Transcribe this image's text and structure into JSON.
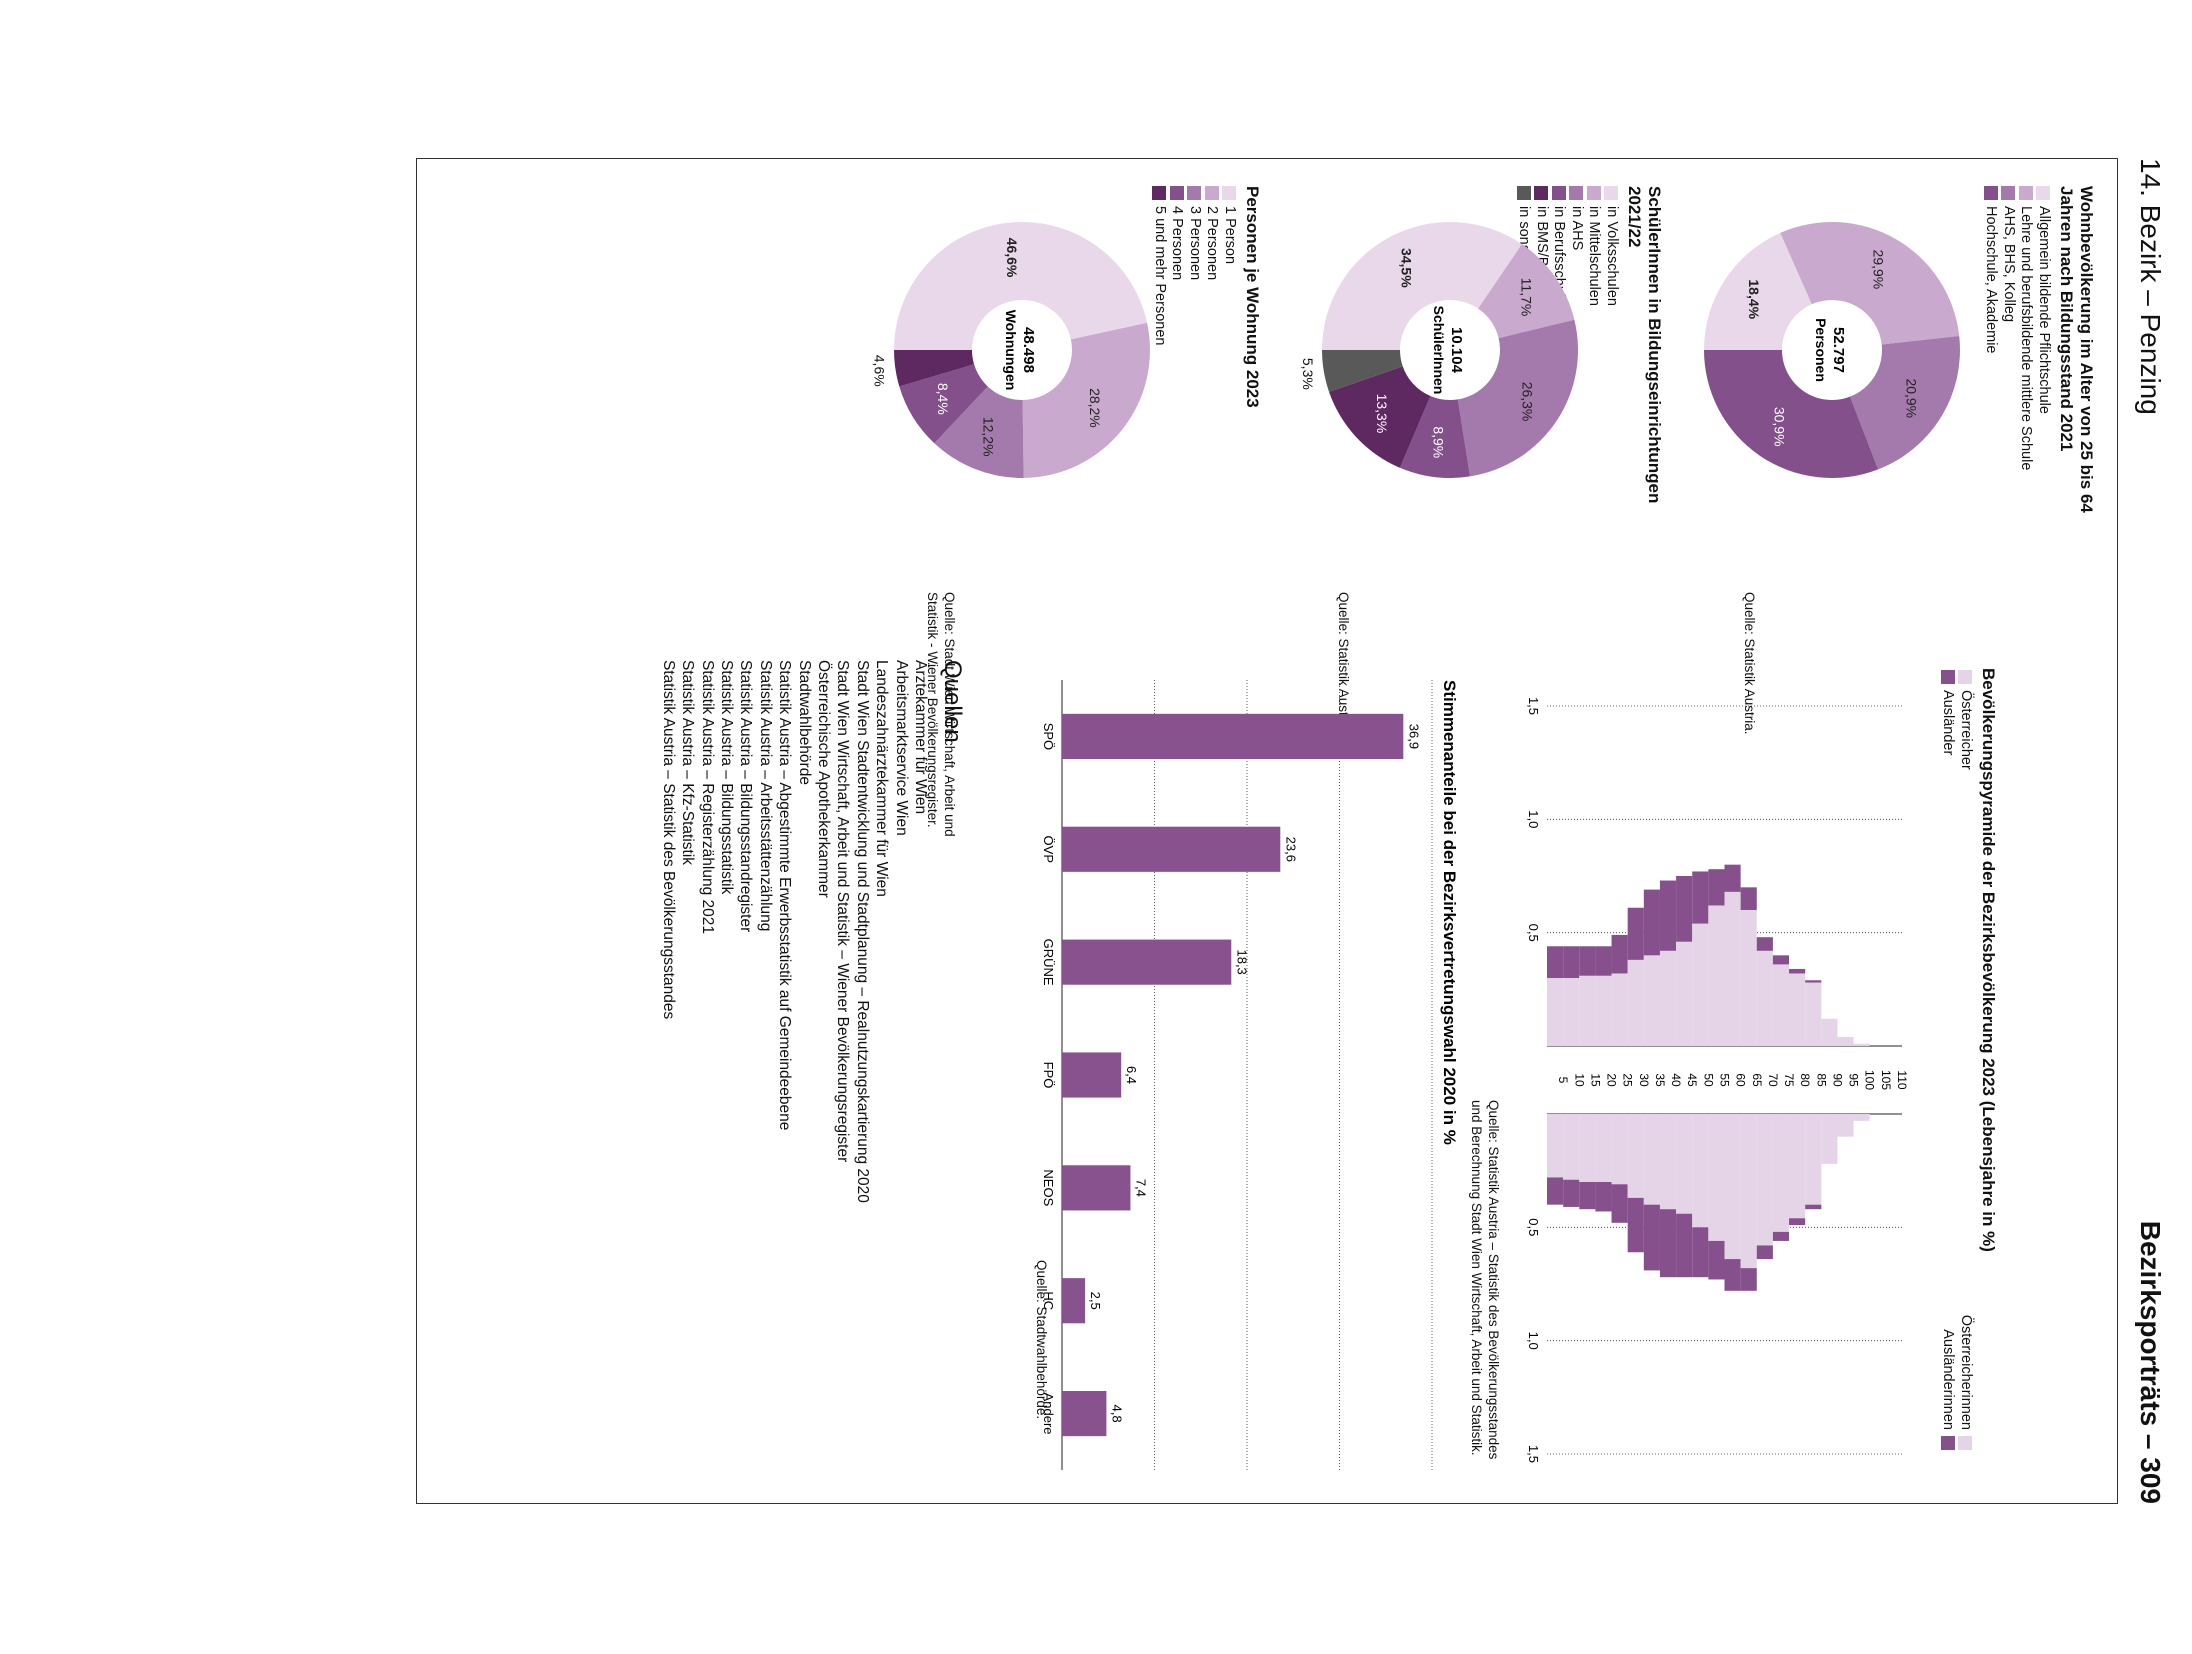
{
  "header": {
    "left": "14. Bezirk – Penzing",
    "right": "Bezirksporträts – 309"
  },
  "colors": {
    "c1": "#e8d8ea",
    "c2": "#c9a9cd",
    "c3": "#a47aac",
    "c4": "#84508b",
    "c5": "#5e2860",
    "grey": "#595959",
    "bar": "#87528e",
    "pyr_light": "#e5d4e8",
    "pyr_dark": "#85508c"
  },
  "donut1": {
    "title": "Wohnbevölkerung im Alter von 25 bis 64 Jahren nach Bildungsstand 2021",
    "center_value": "52.797",
    "center_label": "Personen",
    "legend": [
      {
        "label": "Allgemein bildende Pflichtschule",
        "color": "#e8d8ea"
      },
      {
        "label": "Lehre und berufsbildende mittlere Schule",
        "color": "#c9a9cd"
      },
      {
        "label": "AHS, BHS, Kolleg",
        "color": "#a47aac"
      },
      {
        "label": "Hochschule, Akademie",
        "color": "#84508b"
      }
    ],
    "source": "Quelle: Statistik Austria."
  },
  "donut2": {
    "title": "SchülerInnen in Bildungseinrichtungen 2021/22",
    "center_value": "10.104",
    "center_label": "SchülerInnen",
    "legend": [
      {
        "label": "in Volksschulen",
        "color": "#e8d8ea"
      },
      {
        "label": "in Mittelschulen",
        "color": "#c9a9cd"
      },
      {
        "label": "in AHS",
        "color": "#a47aac"
      },
      {
        "label": "in Berufsschulen",
        "color": "#84508b"
      },
      {
        "label": "in BMS/BHS",
        "color": "#5e2860"
      },
      {
        "label": "in sonstigen Schulen",
        "color": "#595959"
      }
    ],
    "source": "Quelle: Statistik Austria."
  },
  "donut3": {
    "title": "Personen je Wohnung 2023",
    "center_value": "48.498",
    "center_label": "Wohnungen",
    "legend": [
      {
        "label": "1 Person",
        "color": "#e8d8ea"
      },
      {
        "label": "2 Personen",
        "color": "#c9a9cd"
      },
      {
        "label": "3 Personen",
        "color": "#a47aac"
      },
      {
        "label": "4 Personen",
        "color": "#84508b"
      },
      {
        "label": "5 und mehr Personen",
        "color": "#5e2860"
      }
    ],
    "source": "Quelle: Stadt Wien Wirtschaft, Arbeit und Statistik - Wiener Bevölkerungsregister."
  },
  "pyramid": {
    "title": "Bevölkerungspyramide der Bezirksbevölkerung 2023 (Lebensjahre in %)",
    "legend_male": [
      "Österreicher",
      "Ausländer"
    ],
    "legend_female": [
      "Österreicherinnen",
      "Ausländerinnen"
    ],
    "tick_labels": [
      "0,5",
      "1,0",
      "1,5"
    ],
    "age_labels": [
      "5",
      "10",
      "15",
      "20",
      "25",
      "30",
      "35",
      "40",
      "45",
      "50",
      "55",
      "60",
      "65",
      "70",
      "75",
      "80",
      "85",
      "90",
      "95",
      "100",
      "105",
      "110"
    ],
    "source": "Quelle: Statistik Austria – Statistik des Bevölkerungsstandes und Berechnung Stadt Wien Wirtschaft, Arbeit und Statistik."
  },
  "quellen": {
    "title": "Quellen",
    "items": [
      "Ärztekammer für Wien",
      "Arbeitsmarktservice Wien",
      "Landeszahnärztekammer für Wien",
      "Stadt Wien Stadtentwicklung und Stadtplanung – Realnutzungskartierung 2020",
      "Stadt Wien Wirtschaft, Arbeit und Statistik – Wiener Bevölkerungsregister",
      "Österreichische Apothekerkammer",
      "Stadtwahlbehörde",
      "Statistik Austria – Abgestimmte Erwerbsstatistik auf Gemeindeebene",
      "Statistik Austria – Arbeitsstättenzählung",
      "Statistik Austria – Bildungsstandregister",
      "Statistik Austria – Bildungsstatistik",
      "Statistik Austria – Registerzählung 2021",
      "Statistik Austria – Kfz-Statistik",
      "Statistik Austria – Statistik des Bevölkerungsstandes"
    ]
  },
  "chart_data": [
    {
      "type": "pie",
      "title": "Wohnbevölkerung im Alter von 25 bis 64 Jahren nach Bildungsstand 2021",
      "categories": [
        "Allgemein bildende Pflichtschule",
        "Lehre und berufsbildende mittlere Schule",
        "AHS, BHS, Kolleg",
        "Hochschule, Akademie"
      ],
      "values": [
        18.4,
        29.9,
        20.9,
        30.9
      ],
      "labels": [
        "18,4%",
        "29,9%",
        "20,9%",
        "30,9%"
      ],
      "total": "52.797"
    },
    {
      "type": "pie",
      "title": "SchülerInnen in Bildungseinrichtungen 2021/22",
      "categories": [
        "in Volksschulen",
        "in Mittelschulen",
        "in AHS",
        "in Berufsschulen",
        "in BMS/BHS",
        "in sonstigen Schulen"
      ],
      "values": [
        34.5,
        11.7,
        26.3,
        8.9,
        13.3,
        5.3
      ],
      "labels": [
        "34,5%",
        "11,7%",
        "26,3%",
        "8,9%",
        "13,3%",
        "5,3%"
      ],
      "total": "10.104"
    },
    {
      "type": "pie",
      "title": "Personen je Wohnung 2023",
      "categories": [
        "1 Person",
        "2 Personen",
        "3 Personen",
        "4 Personen",
        "5 und mehr Personen"
      ],
      "values": [
        46.6,
        28.2,
        12.2,
        8.4,
        4.6
      ],
      "labels": [
        "46,6%",
        "28,2%",
        "12,2%",
        "8,4%",
        "4,6%"
      ],
      "total": "48.498"
    },
    {
      "type": "bar",
      "title": "Stimmenanteile bei der Bezirksvertretungswahl 2020 in %",
      "categories": [
        "SPÖ",
        "ÖVP",
        "GRÜNE",
        "FPÖ",
        "NEOS",
        "HC",
        "Andere"
      ],
      "values": [
        36.9,
        23.6,
        18.3,
        6.4,
        7.4,
        2.5,
        4.8
      ],
      "labels": [
        "36,9",
        "23,6",
        "18,3",
        "6,4",
        "7,4",
        "2,5",
        "4,8"
      ],
      "ylim": [
        0,
        40
      ],
      "source": "Quelle: Stadtwahlbehörde."
    },
    {
      "type": "area",
      "title": "Bevölkerungspyramide der Bezirksbevölkerung 2023 (Lebensjahre in %)",
      "xlabel": "Lebensjahre",
      "ylabel": "%",
      "xlim": [
        0,
        110
      ],
      "ylim": [
        0,
        1.5
      ],
      "series": [
        {
          "name": "Österreicher",
          "ages": [
            0,
            5,
            10,
            15,
            20,
            25,
            30,
            35,
            40,
            45,
            50,
            55,
            60,
            65,
            70,
            75,
            80,
            85,
            90,
            95,
            100,
            105
          ],
          "values": [
            0.3,
            0.3,
            0.31,
            0.31,
            0.32,
            0.38,
            0.4,
            0.42,
            0.46,
            0.54,
            0.62,
            0.68,
            0.6,
            0.42,
            0.36,
            0.32,
            0.28,
            0.12,
            0.04,
            0.01,
            0.0,
            0.0
          ]
        },
        {
          "name": "Ausländer",
          "ages": [
            0,
            5,
            10,
            15,
            20,
            25,
            30,
            35,
            40,
            45,
            50,
            55,
            60,
            65,
            70,
            75,
            80,
            85,
            90,
            95,
            100,
            105
          ],
          "values": [
            0.14,
            0.14,
            0.13,
            0.13,
            0.17,
            0.23,
            0.29,
            0.31,
            0.29,
            0.23,
            0.16,
            0.12,
            0.1,
            0.06,
            0.04,
            0.02,
            0.01,
            0.0,
            0.0,
            0.0,
            0.0,
            0.0
          ]
        },
        {
          "name": "Österreicherinnen",
          "ages": [
            0,
            5,
            10,
            15,
            20,
            25,
            30,
            35,
            40,
            45,
            50,
            55,
            60,
            65,
            70,
            75,
            80,
            85,
            90,
            95,
            100,
            105
          ],
          "values": [
            0.28,
            0.29,
            0.3,
            0.3,
            0.31,
            0.37,
            0.4,
            0.42,
            0.44,
            0.5,
            0.56,
            0.64,
            0.68,
            0.58,
            0.52,
            0.46,
            0.4,
            0.22,
            0.1,
            0.03,
            0.0,
            0.0
          ]
        },
        {
          "name": "Ausländerinnen",
          "ages": [
            0,
            5,
            10,
            15,
            20,
            25,
            30,
            35,
            40,
            45,
            50,
            55,
            60,
            65,
            70,
            75,
            80,
            85,
            90,
            95,
            100,
            105
          ],
          "values": [
            0.12,
            0.12,
            0.12,
            0.13,
            0.17,
            0.24,
            0.29,
            0.3,
            0.28,
            0.22,
            0.17,
            0.14,
            0.1,
            0.06,
            0.04,
            0.03,
            0.02,
            0.0,
            0.0,
            0.0,
            0.0,
            0.0
          ]
        }
      ]
    }
  ]
}
